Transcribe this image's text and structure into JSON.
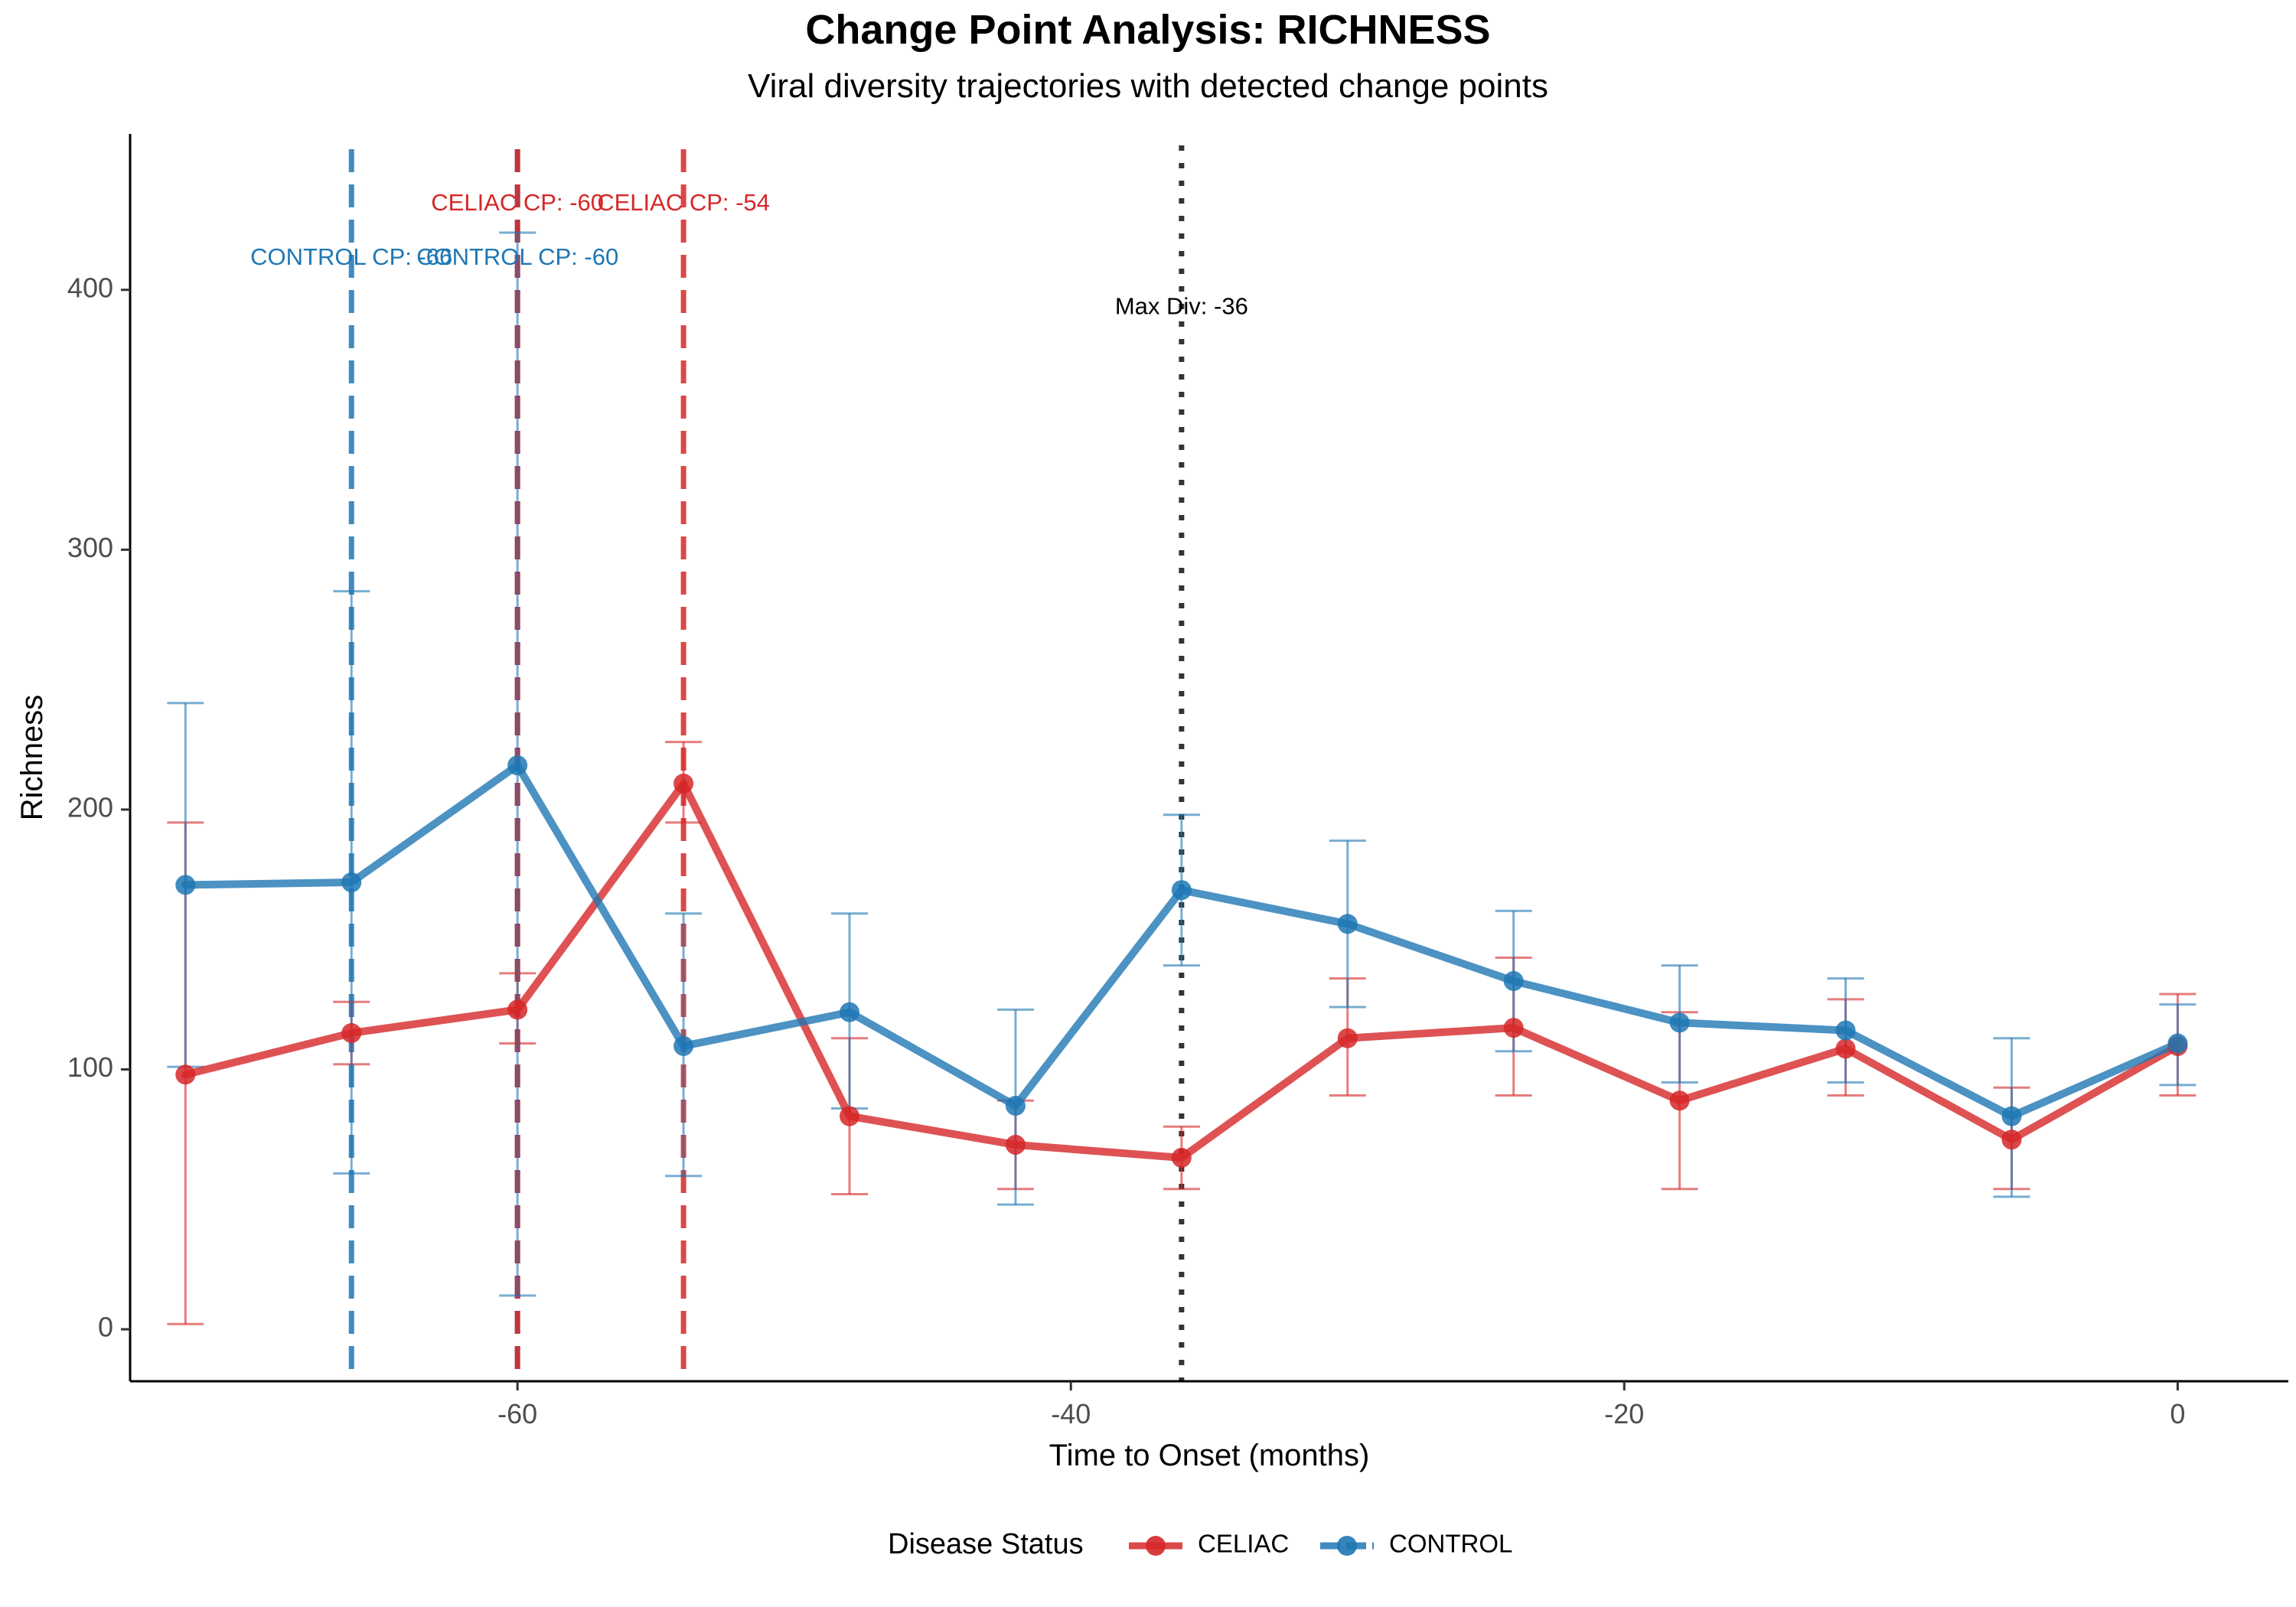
{
  "chart_data": {
    "type": "line",
    "title": "Change Point Analysis: RICHNESS",
    "subtitle": "Viral diversity trajectories with detected change points",
    "xlabel": "Time to Onset (months)",
    "ylabel": "Richness",
    "xlim": [
      -74,
      4
    ],
    "ylim": [
      -20,
      460
    ],
    "x_ticks": [
      -60,
      -40,
      -20,
      0
    ],
    "y_ticks": [
      0,
      100,
      200,
      300,
      400
    ],
    "grid": false,
    "legend": {
      "title": "Disease Status",
      "position": "bottom"
    },
    "x": [
      -72,
      -66,
      -60,
      -54,
      -48,
      -42,
      -36,
      -30,
      -24,
      -18,
      -12,
      -6,
      0
    ],
    "series": [
      {
        "name": "CELIAC",
        "color": "#d62728",
        "values": [
          98,
          114,
          123,
          210,
          82,
          71,
          66,
          112,
          116,
          88,
          108,
          73,
          109
        ],
        "error_low": [
          2,
          102,
          110,
          195,
          52,
          54,
          54,
          90,
          90,
          54,
          90,
          54,
          90
        ],
        "error_high": [
          195,
          126,
          137,
          226,
          112,
          88,
          78,
          135,
          143,
          122,
          127,
          93,
          129
        ]
      },
      {
        "name": "CONTROL",
        "color": "#1f77b4",
        "values": [
          171,
          172,
          217,
          109,
          122,
          86,
          169,
          156,
          134,
          118,
          115,
          82,
          110
        ],
        "error_low": [
          101,
          60,
          13,
          59,
          85,
          48,
          140,
          124,
          107,
          95,
          95,
          51,
          94
        ],
        "error_high": [
          241,
          284,
          422,
          160,
          160,
          123,
          198,
          188,
          161,
          140,
          135,
          112,
          125
        ]
      }
    ],
    "change_points": [
      {
        "series": "CONTROL",
        "x": -66,
        "label": "CONTROL CP: -66"
      },
      {
        "series": "CONTROL",
        "x": -60,
        "label": "CONTROL CP: -60"
      },
      {
        "series": "CELIAC",
        "x": -60,
        "label": "CELIAC CP: -60"
      },
      {
        "series": "CELIAC",
        "x": -54,
        "label": "CELIAC CP: -54"
      }
    ],
    "max_divergence": {
      "x": -36,
      "label": "Max Div: -36"
    }
  }
}
